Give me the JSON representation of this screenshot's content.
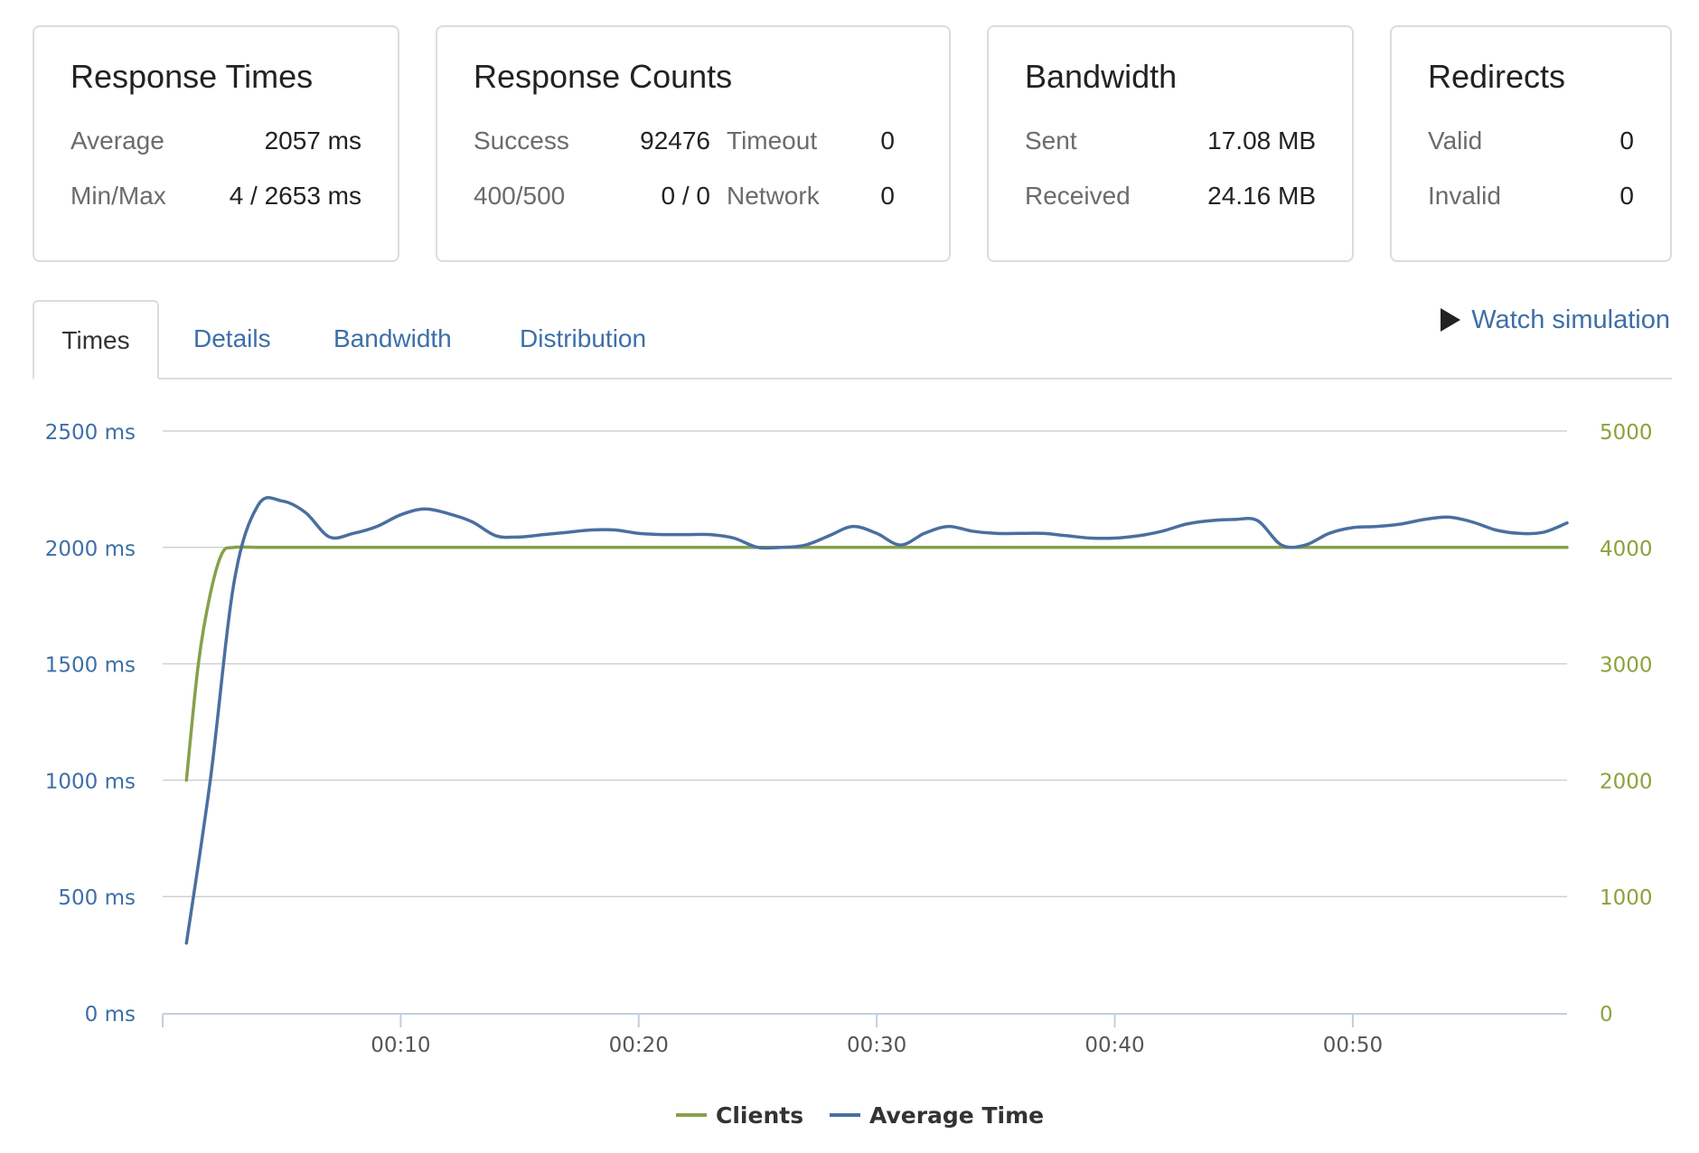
{
  "cards": {
    "response_times": {
      "title": "Response Times",
      "rows": [
        {
          "label": "Average",
          "value": "2057 ms"
        },
        {
          "label": "Min/Max",
          "value": "4 / 2653 ms"
        }
      ]
    },
    "response_counts": {
      "title": "Response Counts",
      "rows": [
        {
          "label": "Success",
          "value": "92476",
          "label2": "Timeout",
          "value2": "0"
        },
        {
          "label": "400/500",
          "value": "0 / 0",
          "label2": "Network",
          "value2": "0"
        }
      ]
    },
    "bandwidth": {
      "title": "Bandwidth",
      "rows": [
        {
          "label": "Sent",
          "value": "17.08 MB"
        },
        {
          "label": "Received",
          "value": "24.16 MB"
        }
      ]
    },
    "redirects": {
      "title": "Redirects",
      "rows": [
        {
          "label": "Valid",
          "value": "0"
        },
        {
          "label": "Invalid",
          "value": "0"
        }
      ]
    }
  },
  "tabs": [
    "Times",
    "Details",
    "Bandwidth",
    "Distribution"
  ],
  "active_tab": "Times",
  "watch_label": "Watch simulation",
  "colors": {
    "clients": "#87a04b",
    "average_time": "#4a6fa0",
    "left_axis": "#3d6fa8",
    "right_axis": "#8aa33a",
    "grid": "#d0d0d0"
  },
  "chart_data": {
    "type": "line",
    "title": "",
    "xlabel": "",
    "ylabel": "",
    "x_tick_labels": [
      "00:10",
      "00:20",
      "00:30",
      "00:40",
      "00:50"
    ],
    "x_ticks": [
      10,
      20,
      30,
      40,
      50
    ],
    "xlim": [
      0,
      59
    ],
    "y_left": {
      "ticks": [
        0,
        500,
        1000,
        1500,
        2000,
        2500
      ],
      "labels": [
        "0 ms",
        "500 ms",
        "1000 ms",
        "1500 ms",
        "2000 ms",
        "2500 ms"
      ],
      "lim": [
        0,
        2500
      ]
    },
    "y_right": {
      "ticks": [
        0,
        1000,
        2000,
        3000,
        4000,
        5000
      ],
      "labels": [
        "0",
        "1000",
        "2000",
        "3000",
        "4000",
        "5000"
      ],
      "lim": [
        0,
        5000
      ]
    },
    "legend": [
      "Clients",
      "Average Time"
    ],
    "legend_position": "bottom-center",
    "series": [
      {
        "name": "Clients",
        "axis": "right",
        "x": [
          1,
          1.5,
          2,
          2.5,
          3,
          4,
          5,
          10,
          20,
          30,
          40,
          50,
          59
        ],
        "values": [
          2000,
          3000,
          3600,
          3950,
          4000,
          4000,
          4000,
          4000,
          4000,
          4000,
          4000,
          4000,
          4000
        ]
      },
      {
        "name": "Average Time",
        "axis": "left",
        "x": [
          1,
          2,
          3,
          4,
          5,
          6,
          7,
          8,
          9,
          10,
          11,
          12,
          13,
          14,
          15,
          16,
          17,
          18,
          19,
          20,
          21,
          22,
          23,
          24,
          25,
          26,
          27,
          28,
          29,
          30,
          31,
          32,
          33,
          34,
          35,
          36,
          37,
          38,
          39,
          40,
          41,
          42,
          43,
          44,
          45,
          46,
          47,
          48,
          49,
          50,
          51,
          52,
          53,
          54,
          55,
          56,
          57,
          58,
          59
        ],
        "values": [
          300,
          1000,
          1850,
          2180,
          2200,
          2150,
          2045,
          2060,
          2090,
          2140,
          2165,
          2145,
          2110,
          2050,
          2045,
          2055,
          2065,
          2075,
          2075,
          2060,
          2055,
          2055,
          2055,
          2040,
          2000,
          2000,
          2010,
          2050,
          2090,
          2060,
          2010,
          2060,
          2090,
          2070,
          2060,
          2060,
          2060,
          2050,
          2040,
          2040,
          2050,
          2070,
          2100,
          2115,
          2120,
          2115,
          2010,
          2010,
          2060,
          2085,
          2090,
          2100,
          2120,
          2130,
          2110,
          2075,
          2060,
          2065,
          2105
        ]
      }
    ]
  }
}
